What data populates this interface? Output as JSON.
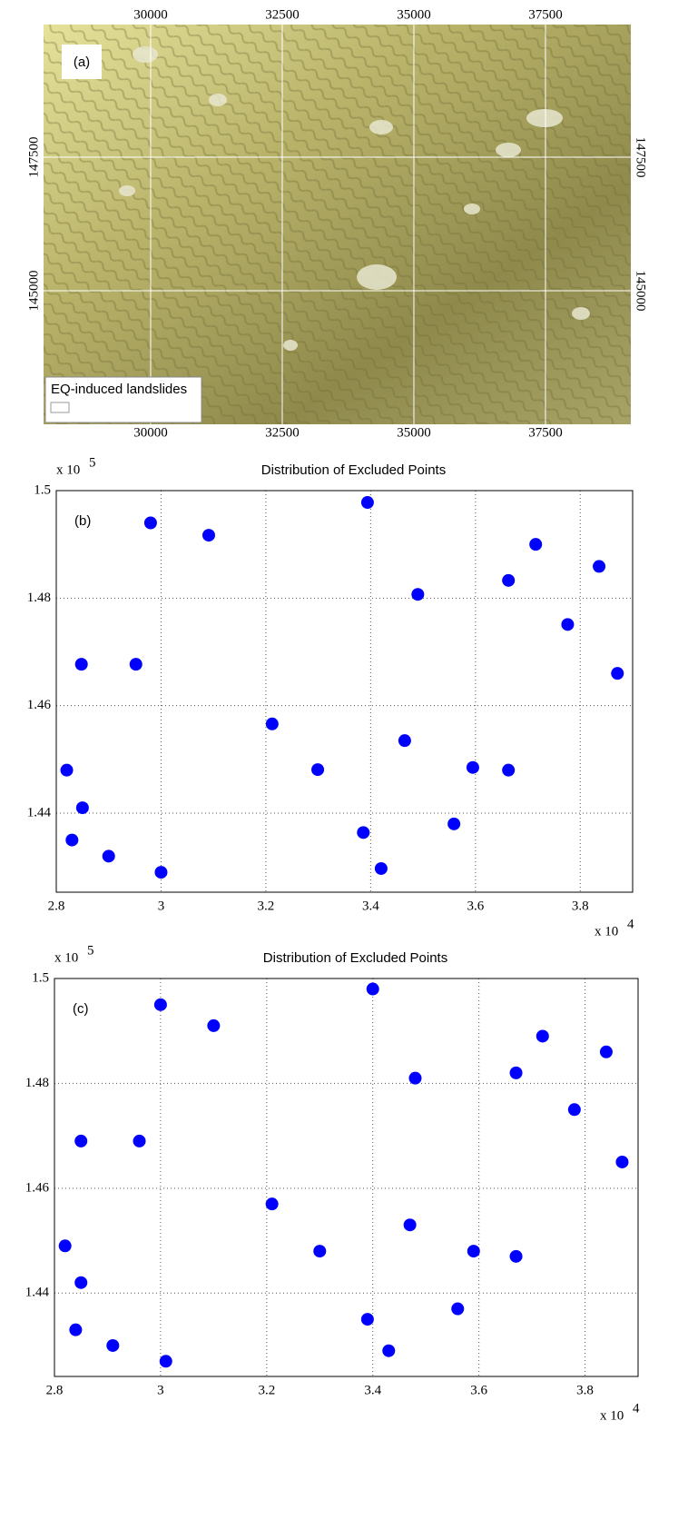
{
  "chart_data": [
    {
      "type": "map",
      "panel_label": "(a)",
      "legend_label": "EQ-induced landslides",
      "xlim": [
        27966,
        39121
      ],
      "ylim": [
        142500,
        149983
      ],
      "xticks": [
        30000,
        32500,
        35000,
        37500
      ],
      "yticks": [
        145000,
        147500
      ],
      "grid": true,
      "grid_color": "#ffffff"
    },
    {
      "type": "scatter",
      "panel_label": "(b)",
      "title": "Distribution of Excluded Points",
      "title_color": "#0000ff",
      "x_scale": {
        "base": "x 10",
        "exp": "4"
      },
      "y_scale": {
        "base": "x 10",
        "exp": "5"
      },
      "xlim": [
        28000,
        39000
      ],
      "ylim": [
        142530,
        150000
      ],
      "xticks": [
        {
          "value": 28000,
          "label": "2.8"
        },
        {
          "value": 30000,
          "label": "3"
        },
        {
          "value": 32000,
          "label": "3.2"
        },
        {
          "value": 34000,
          "label": "3.4"
        },
        {
          "value": 36000,
          "label": "3.6"
        },
        {
          "value": 38000,
          "label": "3.8"
        }
      ],
      "yticks": [
        {
          "value": 144000,
          "label": "1.44"
        },
        {
          "value": 146000,
          "label": "1.46"
        },
        {
          "value": 148000,
          "label": "1.48"
        },
        {
          "value": 150000,
          "label": "1.5"
        }
      ],
      "grid": true,
      "color": "#0000ff",
      "x": [
        34650,
        35950,
        29800,
        33940,
        37150,
        36630,
        37760,
        34900,
        30910,
        28300,
        29000,
        30000,
        28500,
        28200,
        28480,
        29520,
        33860,
        34200,
        38710,
        38360,
        32120,
        32990,
        35590,
        36630
      ],
      "y": [
        145350,
        144850,
        149400,
        149780,
        149000,
        148330,
        147510,
        148070,
        149170,
        143500,
        143200,
        142900,
        144100,
        144800,
        146770,
        146770,
        143640,
        142970,
        146600,
        148590,
        145660,
        144810,
        143800,
        144800
      ]
    },
    {
      "type": "scatter",
      "panel_label": "(c)",
      "title": "Distribution of Excluded Points",
      "title_color": "#0000ff",
      "x_scale": {
        "base": "x 10",
        "exp": "4"
      },
      "y_scale": {
        "base": "x 10",
        "exp": "5"
      },
      "xlim": [
        28000,
        39000
      ],
      "ylim": [
        142410,
        150000
      ],
      "xticks": [
        {
          "value": 28000,
          "label": "2.8"
        },
        {
          "value": 30000,
          "label": "3"
        },
        {
          "value": 32000,
          "label": "3.2"
        },
        {
          "value": 34000,
          "label": "3.4"
        },
        {
          "value": 36000,
          "label": "3.6"
        },
        {
          "value": 38000,
          "label": "3.8"
        }
      ],
      "yticks": [
        {
          "value": 144000,
          "label": "1.44"
        },
        {
          "value": 146000,
          "label": "1.46"
        },
        {
          "value": 148000,
          "label": "1.48"
        },
        {
          "value": 150000,
          "label": "1.5"
        }
      ],
      "grid": true,
      "color": "#0000ff",
      "x": [
        34700,
        35900,
        30000,
        34000,
        37200,
        36700,
        37800,
        34800,
        31000,
        28400,
        29100,
        30100,
        28500,
        28200,
        28500,
        29600,
        33900,
        34300,
        38700,
        38400,
        32100,
        33000,
        35600,
        36700
      ],
      "y": [
        145300,
        144800,
        149500,
        149800,
        148900,
        148200,
        147500,
        148100,
        149100,
        143300,
        143000,
        142700,
        144200,
        144900,
        146900,
        146900,
        143500,
        142900,
        146500,
        148600,
        145700,
        144800,
        143700,
        144700
      ]
    }
  ]
}
